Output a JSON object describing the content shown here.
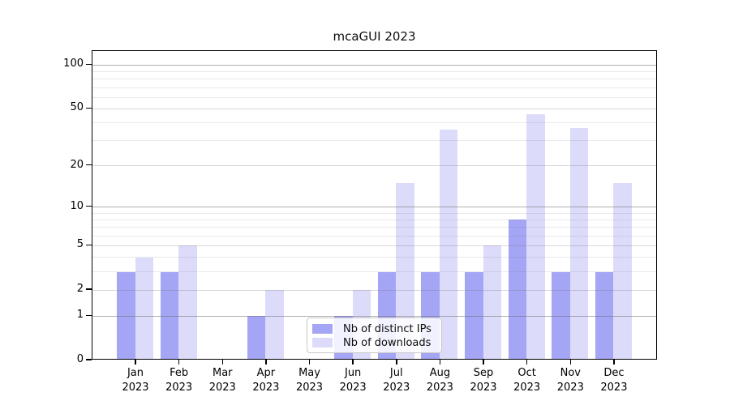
{
  "chart_data": {
    "type": "bar",
    "title": "mcaGUI 2023",
    "categories": [
      "Jan",
      "Feb",
      "Mar",
      "Apr",
      "May",
      "Jun",
      "Jul",
      "Aug",
      "Sep",
      "Oct",
      "Nov",
      "Dec"
    ],
    "category_year": "2023",
    "series": [
      {
        "name": "Nb of distinct IPs",
        "color": "#a5a5f5",
        "values": [
          3,
          3,
          0,
          1,
          0,
          1,
          3,
          3,
          3,
          8,
          3,
          3
        ]
      },
      {
        "name": "Nb of downloads",
        "color": "#dcdcfa",
        "values": [
          4,
          5,
          0,
          2,
          0,
          2,
          15,
          36,
          5,
          46,
          37,
          15
        ]
      }
    ],
    "xlabel": "",
    "ylabel": "",
    "yscale": "log1p",
    "ylim": [
      0,
      125
    ],
    "ytick_labels": [
      100,
      50,
      20,
      10,
      5,
      2,
      1,
      0
    ],
    "gridlines_major": [
      1,
      10,
      100
    ],
    "gridlines_mid": [
      2,
      5,
      20,
      50
    ],
    "gridlines_minor": [
      3,
      4,
      6,
      7,
      8,
      9,
      30,
      40,
      60,
      70,
      80,
      90
    ],
    "grid": "on",
    "legend_position": "lower center"
  }
}
